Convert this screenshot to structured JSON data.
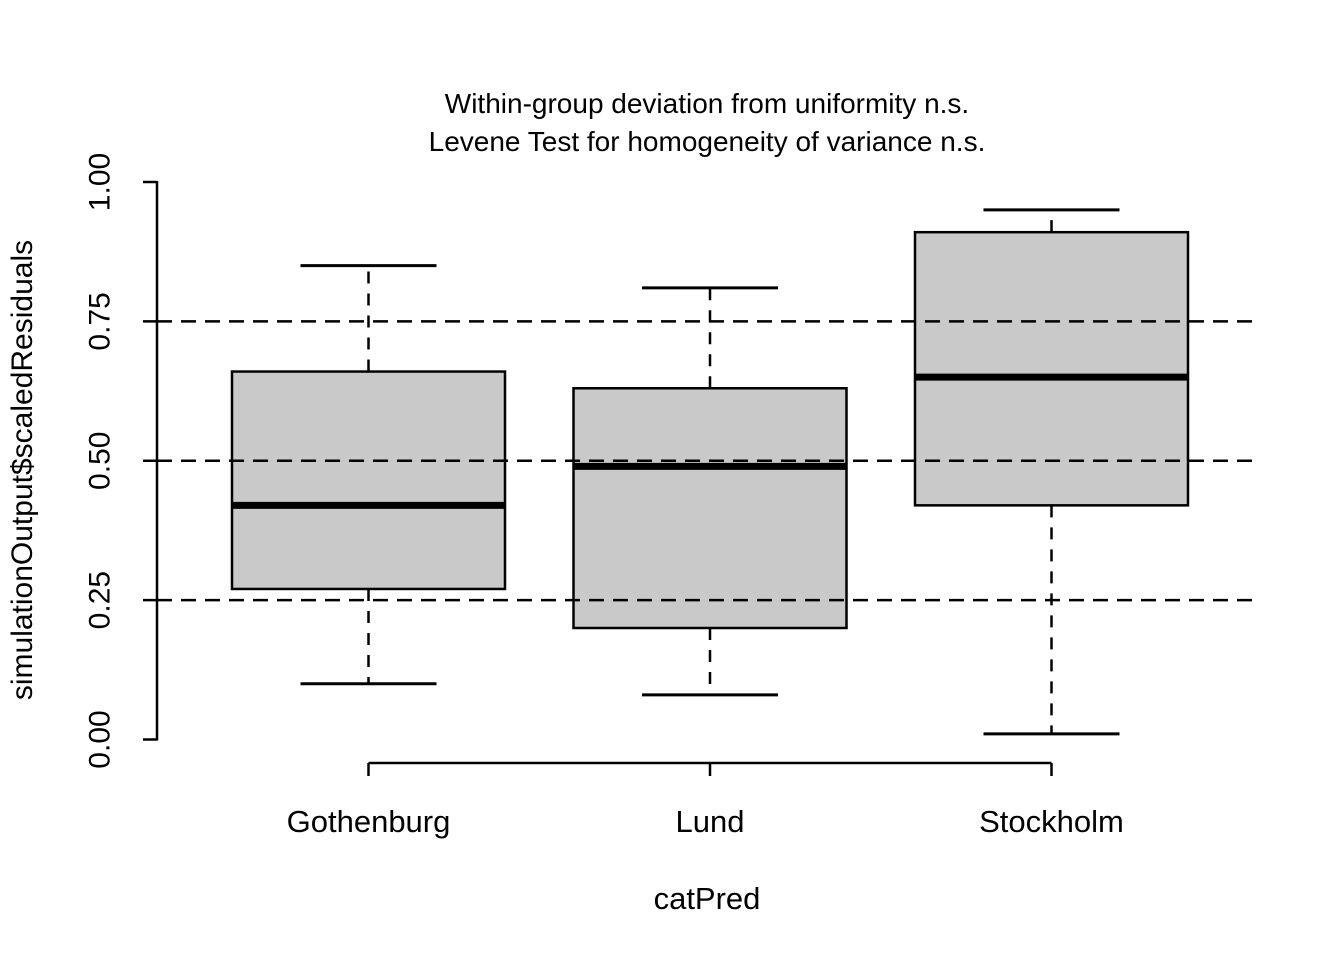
{
  "chart_data": {
    "type": "boxplot",
    "title_line1": "Within-group deviation from uniformity n.s.",
    "title_line2": "Levene Test for homogeneity of variance n.s.",
    "xlabel": "catPred",
    "ylabel": "simulationOutput$scaledResiduals",
    "categories": [
      "Gothenburg",
      "Lund",
      "Stockholm"
    ],
    "series": [
      {
        "name": "Gothenburg",
        "whisker_low": 0.1,
        "q1": 0.27,
        "median": 0.42,
        "q3": 0.66,
        "whisker_high": 0.85
      },
      {
        "name": "Lund",
        "whisker_low": 0.08,
        "q1": 0.2,
        "median": 0.49,
        "q3": 0.63,
        "whisker_high": 0.81
      },
      {
        "name": "Stockholm",
        "whisker_low": 0.01,
        "q1": 0.42,
        "median": 0.65,
        "q3": 0.91,
        "whisker_high": 0.95
      }
    ],
    "ylim": [
      0.0,
      1.0
    ],
    "ytick_labels": [
      "0.00",
      "0.25",
      "0.50",
      "0.75",
      "1.00"
    ],
    "ytick_values": [
      0.0,
      0.25,
      0.5,
      0.75,
      1.0
    ],
    "gridlines": {
      "values": [
        0.25,
        0.5,
        0.75
      ],
      "style": "dashed"
    },
    "legend": "none",
    "colors": {
      "box_fill": "#c9c9c9",
      "line": "#000000",
      "background": "#ffffff"
    }
  }
}
